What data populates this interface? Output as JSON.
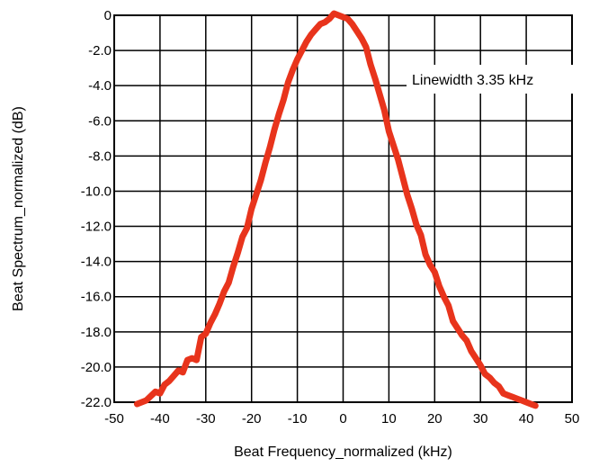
{
  "chart_data": {
    "type": "line",
    "xlabel": "Beat Frequency_normalized (kHz)",
    "ylabel": "Beat Spectrum_normalized (dB)",
    "xlim": [
      -50,
      50
    ],
    "ylim": [
      -22,
      0
    ],
    "xticks": [
      -50,
      -40,
      -30,
      -20,
      -10,
      0,
      10,
      20,
      30,
      40,
      50
    ],
    "xtick_labels": [
      "-50",
      "-40",
      "-30",
      "-20",
      "-10",
      "0",
      "10",
      "20",
      "30",
      "40",
      "50"
    ],
    "yticks": [
      0,
      -2,
      -4,
      -6,
      -8,
      -10,
      -12,
      -14,
      -16,
      -18,
      -20,
      -22
    ],
    "ytick_labels": [
      "0",
      "-2.0",
      "-4.0",
      "-6.0",
      "-8.0",
      "-10.0",
      "-12.0",
      "-14.0",
      "-16.0",
      "-18.0",
      "-20.0",
      "-22.0"
    ],
    "grid": true,
    "annotation": "Linewidth 3.35 kHz",
    "series": [
      {
        "color": "#e8341c",
        "x": [
          -45,
          -43,
          -41,
          -40,
          -39,
          -38,
          -37,
          -36,
          -35,
          -34,
          -33,
          -32,
          -31,
          -30,
          -29,
          -28,
          -27,
          -26,
          -25,
          -24,
          -23,
          -22,
          -21,
          -20,
          -19,
          -18,
          -17,
          -16,
          -15,
          -14,
          -13,
          -12,
          -11,
          -10,
          -9,
          -8,
          -7,
          -6,
          -5,
          -4,
          -3,
          -2,
          -1,
          0,
          1,
          2,
          3,
          4,
          5,
          6,
          7,
          8,
          9,
          10,
          11,
          12,
          13,
          14,
          15,
          16,
          17,
          18,
          19,
          20,
          21,
          22,
          23,
          24,
          25,
          26,
          27,
          28,
          29,
          30,
          31,
          32,
          33,
          34,
          35,
          36,
          37,
          38,
          39,
          40,
          41,
          42
        ],
        "y": [
          -22.1,
          -21.9,
          -21.4,
          -21.5,
          -21.0,
          -20.8,
          -20.5,
          -20.2,
          -20.3,
          -19.6,
          -19.5,
          -19.6,
          -18.3,
          -18.1,
          -17.5,
          -17.0,
          -16.4,
          -15.7,
          -15.2,
          -14.3,
          -13.5,
          -12.6,
          -12.1,
          -11.0,
          -10.2,
          -9.4,
          -8.4,
          -7.5,
          -6.5,
          -5.6,
          -4.8,
          -3.8,
          -3.1,
          -2.5,
          -2.0,
          -1.5,
          -1.1,
          -0.8,
          -0.5,
          -0.4,
          -0.2,
          0.1,
          0.0,
          -0.1,
          -0.2,
          -0.5,
          -0.9,
          -1.3,
          -1.8,
          -2.8,
          -3.6,
          -4.5,
          -5.4,
          -6.6,
          -7.4,
          -8.2,
          -9.2,
          -10.2,
          -11.0,
          -11.9,
          -12.5,
          -13.6,
          -14.2,
          -14.6,
          -15.4,
          -16.0,
          -16.5,
          -17.4,
          -17.8,
          -18.2,
          -18.5,
          -19.1,
          -19.5,
          -19.9,
          -20.4,
          -20.6,
          -20.9,
          -21.1,
          -21.5,
          -21.6,
          -21.7,
          -21.8,
          -21.9,
          -22.0,
          -22.1,
          -22.2
        ]
      }
    ]
  }
}
